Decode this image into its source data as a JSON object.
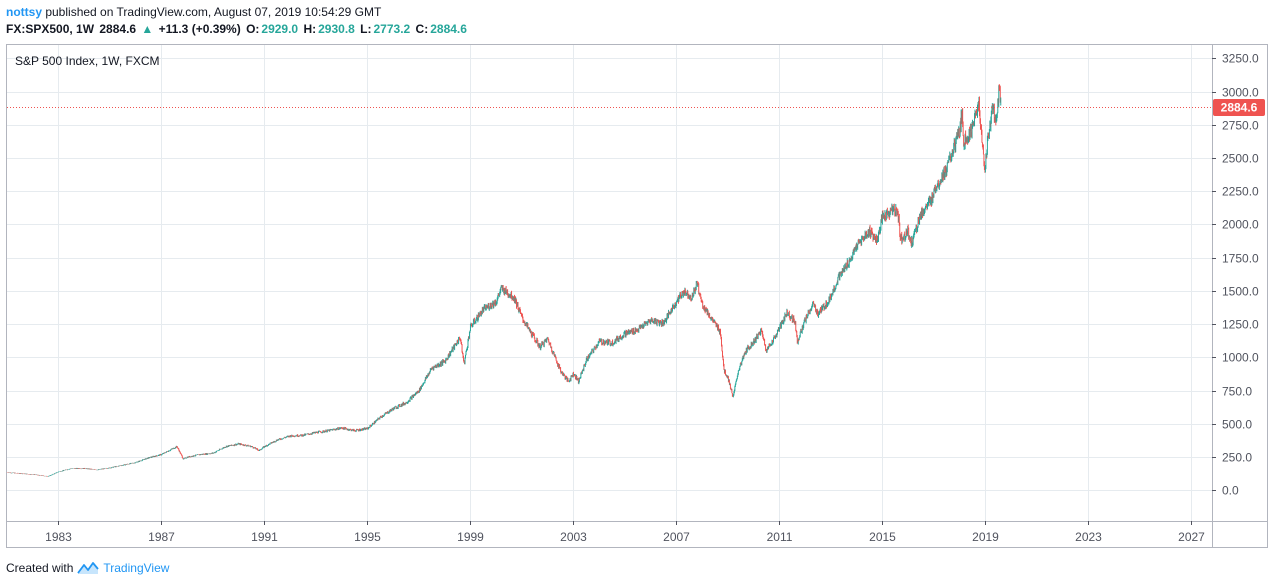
{
  "header": {
    "user": "nottsy",
    "published_text": " published on TradingView.com, August 07, 2019 10:54:29 GMT",
    "symbol": "FX:SPX500, 1W",
    "last": "2884.6",
    "change_arrow": "▲",
    "change": "+11.3 (+0.39%)",
    "open_label": "O:",
    "open": "2929.0",
    "high_label": "H:",
    "high": "2930.8",
    "low_label": "L:",
    "low": "2773.2",
    "close_label": "C:",
    "close": "2884.6"
  },
  "footer": {
    "created_with": "Created with",
    "brand": "TradingView",
    "logo_icon": "tradingview-logo-icon"
  },
  "colors": {
    "up": "#26a69a",
    "down": "#ef5350",
    "price_line": "#ef5350",
    "grid": "#e6ebef",
    "axis": "#50535e",
    "brand": "#2196f3"
  },
  "chart_data": {
    "type": "candlestick",
    "title": "S&P 500 Index, 1W, FXCM",
    "interval": "1W",
    "xlim": [
      1981.0,
      2027.8
    ],
    "ylim": [
      -230,
      3350
    ],
    "x_ticks": [
      "1983",
      "1987",
      "1991",
      "1995",
      "1999",
      "2003",
      "2007",
      "2011",
      "2015",
      "2019",
      "2023",
      "2027"
    ],
    "y_ticks": [
      "3250.0",
      "3000.0",
      "2750.0",
      "2500.0",
      "2250.0",
      "2000.0",
      "1750.0",
      "1500.0",
      "1250.0",
      "1000.0",
      "750.0",
      "500.0",
      "250.0",
      "0.0"
    ],
    "last_price": 2884.6,
    "last_price_label": "2884.6",
    "grid": true,
    "price_path": [
      [
        1981.0,
        135
      ],
      [
        1982.0,
        120
      ],
      [
        1982.6,
        105
      ],
      [
        1983.0,
        140
      ],
      [
        1983.5,
        165
      ],
      [
        1984.0,
        165
      ],
      [
        1984.5,
        155
      ],
      [
        1985.0,
        170
      ],
      [
        1985.5,
        190
      ],
      [
        1986.0,
        210
      ],
      [
        1986.5,
        245
      ],
      [
        1987.0,
        270
      ],
      [
        1987.6,
        330
      ],
      [
        1987.85,
        235
      ],
      [
        1988.0,
        250
      ],
      [
        1988.5,
        270
      ],
      [
        1989.0,
        280
      ],
      [
        1989.5,
        330
      ],
      [
        1990.0,
        350
      ],
      [
        1990.5,
        330
      ],
      [
        1990.8,
        300
      ],
      [
        1991.0,
        330
      ],
      [
        1991.5,
        380
      ],
      [
        1992.0,
        410
      ],
      [
        1992.5,
        415
      ],
      [
        1993.0,
        435
      ],
      [
        1993.5,
        450
      ],
      [
        1994.0,
        470
      ],
      [
        1994.5,
        450
      ],
      [
        1995.0,
        465
      ],
      [
        1995.5,
        550
      ],
      [
        1996.0,
        615
      ],
      [
        1996.5,
        660
      ],
      [
        1997.0,
        750
      ],
      [
        1997.5,
        920
      ],
      [
        1998.0,
        970
      ],
      [
        1998.6,
        1150
      ],
      [
        1998.75,
        950
      ],
      [
        1999.0,
        1230
      ],
      [
        1999.5,
        1360
      ],
      [
        2000.0,
        1420
      ],
      [
        2000.2,
        1520
      ],
      [
        2000.7,
        1450
      ],
      [
        2001.0,
        1300
      ],
      [
        2001.3,
        1200
      ],
      [
        2001.7,
        1080
      ],
      [
        2002.0,
        1140
      ],
      [
        2002.5,
        900
      ],
      [
        2002.8,
        820
      ],
      [
        2003.0,
        880
      ],
      [
        2003.2,
        820
      ],
      [
        2003.5,
        980
      ],
      [
        2004.0,
        1120
      ],
      [
        2004.5,
        1110
      ],
      [
        2005.0,
        1180
      ],
      [
        2005.5,
        1210
      ],
      [
        2006.0,
        1280
      ],
      [
        2006.5,
        1260
      ],
      [
        2007.0,
        1420
      ],
      [
        2007.3,
        1500
      ],
      [
        2007.6,
        1450
      ],
      [
        2007.8,
        1560
      ],
      [
        2008.0,
        1400
      ],
      [
        2008.5,
        1250
      ],
      [
        2008.7,
        1200
      ],
      [
        2008.85,
        900
      ],
      [
        2009.0,
        850
      ],
      [
        2009.2,
        700
      ],
      [
        2009.4,
        900
      ],
      [
        2009.7,
        1050
      ],
      [
        2010.0,
        1120
      ],
      [
        2010.3,
        1200
      ],
      [
        2010.5,
        1050
      ],
      [
        2010.9,
        1180
      ],
      [
        2011.3,
        1340
      ],
      [
        2011.6,
        1270
      ],
      [
        2011.7,
        1120
      ],
      [
        2012.0,
        1280
      ],
      [
        2012.3,
        1400
      ],
      [
        2012.5,
        1330
      ],
      [
        2012.9,
        1420
      ],
      [
        2013.3,
        1600
      ],
      [
        2013.8,
        1750
      ],
      [
        2014.0,
        1840
      ],
      [
        2014.5,
        1950
      ],
      [
        2014.8,
        1880
      ],
      [
        2015.0,
        2050
      ],
      [
        2015.4,
        2110
      ],
      [
        2015.6,
        2100
      ],
      [
        2015.7,
        1890
      ],
      [
        2016.0,
        1950
      ],
      [
        2016.1,
        1850
      ],
      [
        2016.5,
        2080
      ],
      [
        2016.9,
        2180
      ],
      [
        2017.0,
        2260
      ],
      [
        2017.5,
        2420
      ],
      [
        2018.0,
        2700
      ],
      [
        2018.1,
        2850
      ],
      [
        2018.15,
        2620
      ],
      [
        2018.5,
        2720
      ],
      [
        2018.75,
        2920
      ],
      [
        2018.85,
        2650
      ],
      [
        2018.97,
        2420
      ],
      [
        2019.1,
        2650
      ],
      [
        2019.3,
        2900
      ],
      [
        2019.4,
        2750
      ],
      [
        2019.5,
        2950
      ],
      [
        2019.55,
        3020
      ],
      [
        2019.6,
        2884.6
      ]
    ]
  }
}
